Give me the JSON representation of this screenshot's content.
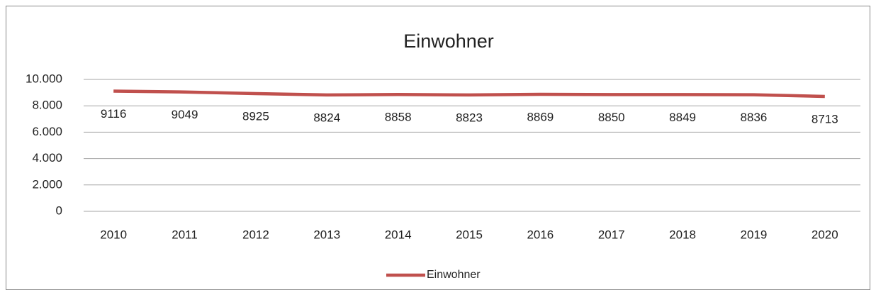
{
  "chart_data": {
    "type": "line",
    "title": "Einwohner",
    "categories": [
      "2010",
      "2011",
      "2012",
      "2013",
      "2014",
      "2015",
      "2016",
      "2017",
      "2018",
      "2019",
      "2020"
    ],
    "series": [
      {
        "name": "Einwohner",
        "color": "#c0504d",
        "values": [
          9116,
          9049,
          8925,
          8824,
          8858,
          8823,
          8869,
          8850,
          8849,
          8836,
          8713
        ]
      }
    ],
    "ylim": [
      0,
      10000
    ],
    "yticks": [
      0,
      {
        "value": 2000,
        "label": "2.000"
      },
      {
        "value": 4000,
        "label": "4.000"
      },
      {
        "value": 6000,
        "label": "6.000"
      },
      {
        "value": 8000,
        "label": "8.000"
      },
      {
        "value": 10000,
        "label": "10.000"
      }
    ],
    "grid": true,
    "legend": "bottom"
  }
}
